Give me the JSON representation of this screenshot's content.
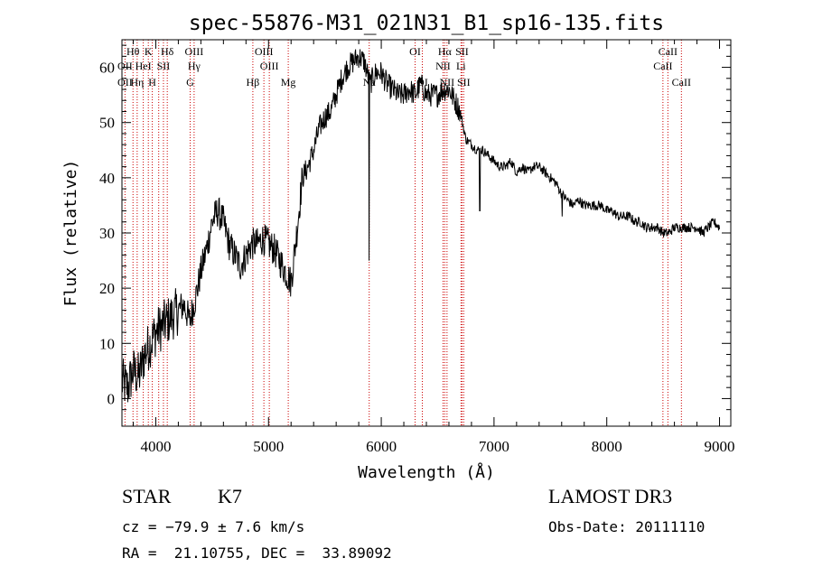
{
  "chart_data": {
    "type": "line",
    "title": "spec-55876-M31_021N31_B1_sp16-135.fits",
    "xlabel": "Wavelength (Å)",
    "ylabel": "Flux (relative)",
    "xlim": [
      3700,
      9100
    ],
    "ylim": [
      -5,
      65
    ],
    "x_ticks": [
      4000,
      5000,
      6000,
      7000,
      8000,
      9000
    ],
    "y_ticks": [
      0,
      10,
      20,
      30,
      40,
      50,
      60
    ],
    "grid": false,
    "line_color": "#000000",
    "marker_color": "#cc0000",
    "series": [
      {
        "x": [
          3700,
          3750,
          3800,
          3850,
          3900,
          3950,
          4000,
          4050,
          4100,
          4150,
          4200,
          4250,
          4300,
          4350,
          4400,
          4450,
          4500,
          4550,
          4600,
          4650,
          4700,
          4750,
          4800,
          4850,
          4900,
          4950,
          5000,
          5050,
          5100,
          5150,
          5200,
          5250,
          5300,
          5350,
          5400,
          5450,
          5500,
          5550,
          5600,
          5650,
          5700,
          5750,
          5800,
          5850,
          5900,
          5950,
          6000,
          6050,
          6100,
          6150,
          6200,
          6250,
          6300,
          6350,
          6400,
          6450,
          6500,
          6550,
          6600,
          6650,
          6700,
          6750,
          6800,
          6850,
          6900,
          6950,
          7000,
          7050,
          7100,
          7150,
          7200,
          7250,
          7300,
          7350,
          7400,
          7450,
          7500,
          7550,
          7600,
          7650,
          7700,
          7750,
          7800,
          7850,
          7900,
          7950,
          8000,
          8050,
          8100,
          8150,
          8200,
          8250,
          8300,
          8350,
          8400,
          8450,
          8500,
          8550,
          8600,
          8650,
          8700,
          8750,
          8800,
          8850,
          8900,
          8950,
          9000
        ],
        "y": [
          3,
          2,
          5,
          4,
          8,
          10,
          12,
          13,
          14,
          15,
          16,
          17,
          14,
          18,
          23,
          27,
          32,
          34,
          32,
          28,
          26,
          24,
          26,
          28,
          28,
          29,
          28,
          27,
          25,
          23,
          21,
          30,
          40,
          42,
          45,
          49,
          51,
          52,
          55,
          58,
          60,
          61,
          62,
          61,
          57,
          59,
          59,
          57,
          56,
          55,
          55,
          56,
          55,
          57,
          55,
          55,
          55,
          56,
          56,
          54,
          52,
          47,
          46,
          45,
          45,
          44,
          43,
          42,
          42,
          43,
          41,
          42,
          41,
          42,
          42,
          41,
          40,
          39,
          37,
          36,
          35,
          36,
          35,
          35,
          35,
          35,
          34,
          34,
          33,
          33,
          33,
          32,
          32,
          31,
          31,
          31,
          30,
          30,
          31,
          31,
          31,
          31,
          31,
          30,
          31,
          32,
          31
        ]
      }
    ],
    "line_markers": [
      {
        "wave": 3798,
        "label": "Hθ",
        "row": 0
      },
      {
        "wave": 3835,
        "label": "",
        "row": 0
      },
      {
        "wave": 3889,
        "label": "",
        "row": 0
      },
      {
        "wave": 3934,
        "label": "K",
        "row": 0
      },
      {
        "wave": 3969,
        "label": "",
        "row": 0
      },
      {
        "wave": 4026,
        "label": "",
        "row": 0
      },
      {
        "wave": 4102,
        "label": "Hδ",
        "row": 0
      },
      {
        "wave": 4340,
        "label": "OIII",
        "row": 0
      },
      {
        "wave": 4959,
        "label": "OIII",
        "row": 0
      },
      {
        "wave": 6300,
        "label": "OI",
        "row": 0
      },
      {
        "wave": 6563,
        "label": "Hα",
        "row": 0
      },
      {
        "wave": 6716,
        "label": "SII",
        "row": 0
      },
      {
        "wave": 8542,
        "label": "CaII",
        "row": 0
      },
      {
        "wave": 3727,
        "label": "OII",
        "row": 1
      },
      {
        "wave": 3889,
        "label": "HeI",
        "row": 1
      },
      {
        "wave": 4068,
        "label": "SII",
        "row": 1
      },
      {
        "wave": 4340,
        "label": "Hγ",
        "row": 1
      },
      {
        "wave": 5007,
        "label": "OIII",
        "row": 1
      },
      {
        "wave": 6548,
        "label": "NII",
        "row": 1
      },
      {
        "wave": 6707,
        "label": "Li",
        "row": 1
      },
      {
        "wave": 8498,
        "label": "CaII",
        "row": 1
      },
      {
        "wave": 3727,
        "label": "OII",
        "row": 2
      },
      {
        "wave": 3835,
        "label": "Hη",
        "row": 2
      },
      {
        "wave": 3969,
        "label": "H",
        "row": 2
      },
      {
        "wave": 4305,
        "label": "G",
        "row": 2
      },
      {
        "wave": 4861,
        "label": "Hβ",
        "row": 2
      },
      {
        "wave": 5175,
        "label": "Mg",
        "row": 2
      },
      {
        "wave": 5893,
        "label": "Na",
        "row": 2
      },
      {
        "wave": 6364,
        "label": "OI",
        "row": 2
      },
      {
        "wave": 6583,
        "label": "NII",
        "row": 2
      },
      {
        "wave": 6731,
        "label": "SII",
        "row": 2
      },
      {
        "wave": 8662,
        "label": "CaII",
        "row": 2
      }
    ]
  },
  "info": {
    "object_class": "STAR",
    "subclass": "K7",
    "survey": "LAMOST DR3",
    "redshift": "cz = −79.9 ± 7.6 km/s",
    "obs_date": "Obs-Date: 20111110",
    "coords": "RA =  21.10755, DEC =  33.89092"
  }
}
